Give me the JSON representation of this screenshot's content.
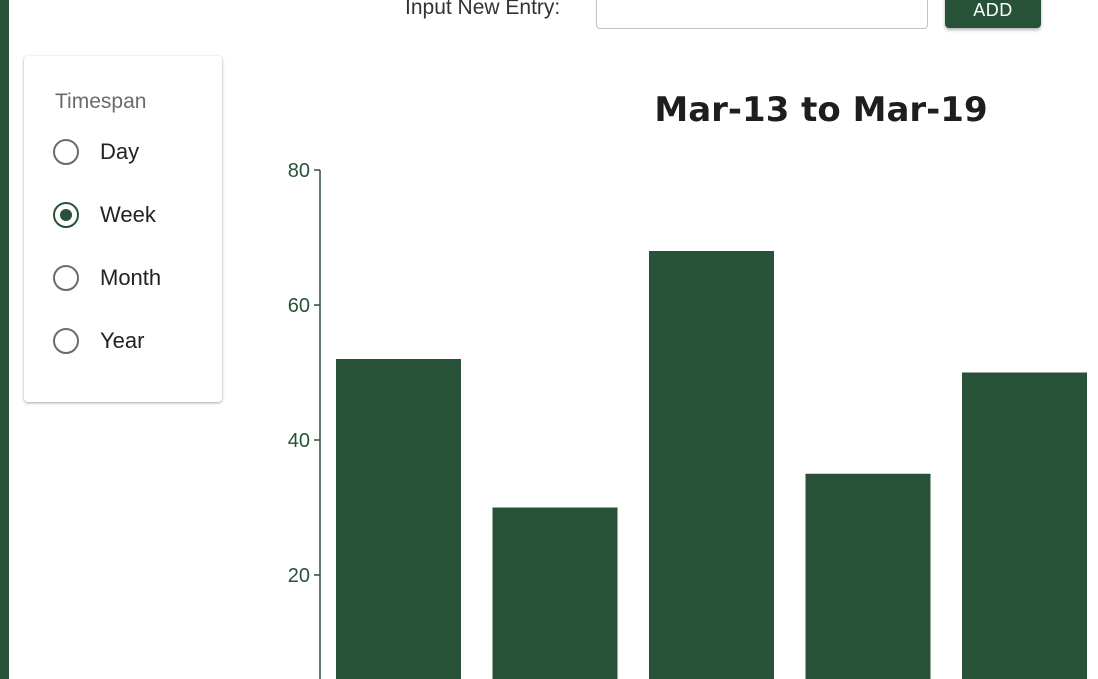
{
  "entry": {
    "label": "Input New Entry:",
    "value": "",
    "placeholder": "",
    "add_label": "ADD"
  },
  "timespan": {
    "legend": "Timespan",
    "options": [
      {
        "label": "Day",
        "checked": false
      },
      {
        "label": "Week",
        "checked": true
      },
      {
        "label": "Month",
        "checked": false
      },
      {
        "label": "Year",
        "checked": false
      }
    ]
  },
  "colors": {
    "accent": "#285238",
    "radio_unchecked": "#6b6b6b"
  },
  "chart_data": {
    "type": "bar",
    "title": "Mar-13 to Mar-19",
    "xlabel": "",
    "ylabel": "",
    "ylim": [
      0,
      80
    ],
    "yticks": [
      20,
      40,
      60,
      80
    ],
    "categories": [
      "",
      "",
      "",
      "",
      ""
    ],
    "values": [
      52,
      30,
      68,
      35,
      50
    ],
    "grid": false,
    "color": "#285238"
  }
}
